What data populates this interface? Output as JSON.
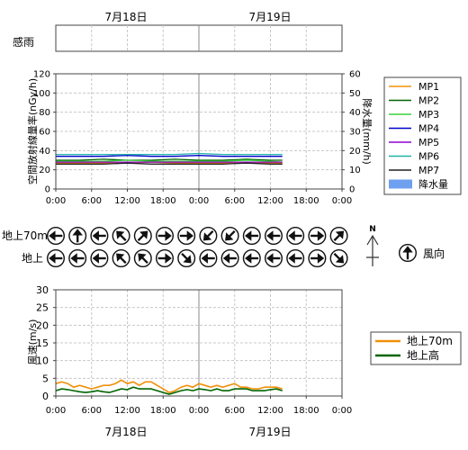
{
  "dates": [
    "7月18日",
    "7月19日"
  ],
  "rain_strip": {
    "label": "感雨"
  },
  "time_ticks": [
    "0:00",
    "6:00",
    "12:00",
    "18:00",
    "0:00",
    "6:00",
    "12:00",
    "18:00",
    "0:00"
  ],
  "dose_chart": {
    "type": "line",
    "ylabel": "空間放射線量率(nGy/h)",
    "y2label": "降水量(mm/h)",
    "ylim": [
      0,
      120
    ],
    "y2lim": [
      0,
      60
    ],
    "yticks": [
      "0",
      "20",
      "40",
      "60",
      "80",
      "100",
      "120"
    ],
    "y2ticks": [
      "0",
      "10",
      "20",
      "30",
      "40",
      "50",
      "60"
    ],
    "x_hours_range": [
      0,
      48
    ],
    "legend": [
      {
        "name": "MP1",
        "color": "#f0900a"
      },
      {
        "name": "MP2",
        "color": "#006400"
      },
      {
        "name": "MP3",
        "color": "#3cd23c"
      },
      {
        "name": "MP4",
        "color": "#0000c8"
      },
      {
        "name": "MP5",
        "color": "#9400d3"
      },
      {
        "name": "MP6",
        "color": "#20b2aa"
      },
      {
        "name": "MP7",
        "color": "#202020"
      }
    ],
    "rain_legend": {
      "name": "降水量",
      "color": "#6fa0f0"
    },
    "series_x_hours": [
      0,
      4,
      8,
      12,
      16,
      20,
      24,
      28,
      32,
      36,
      38
    ],
    "series": [
      {
        "name": "MP1",
        "color": "#f0900a",
        "values": [
          27,
          27,
          27,
          27,
          28,
          27,
          27,
          27,
          28,
          27,
          27
        ]
      },
      {
        "name": "MP2",
        "color": "#006400",
        "values": [
          30,
          30,
          31,
          30,
          30,
          31,
          30,
          30,
          31,
          30,
          30
        ]
      },
      {
        "name": "MP3",
        "color": "#3cd23c",
        "values": [
          29,
          29,
          29,
          30,
          29,
          29,
          29,
          29,
          30,
          29,
          28
        ]
      },
      {
        "name": "MP4",
        "color": "#0000c8",
        "values": [
          34,
          34,
          34,
          35,
          34,
          34,
          35,
          34,
          34,
          34,
          34
        ]
      },
      {
        "name": "MP5",
        "color": "#9400d3",
        "values": [
          28,
          28,
          28,
          28,
          28,
          28,
          28,
          28,
          28,
          28,
          28
        ]
      },
      {
        "name": "MP6",
        "color": "#20b2aa",
        "values": [
          36,
          36,
          36,
          36,
          36,
          36,
          37,
          36,
          36,
          36,
          36
        ]
      },
      {
        "name": "MP7",
        "color": "#202020",
        "values": [
          26,
          26,
          26,
          27,
          26,
          26,
          26,
          26,
          27,
          26,
          26
        ]
      }
    ]
  },
  "wind_dir": {
    "rows": [
      {
        "label": "地上70m",
        "angles": [
          270,
          0,
          270,
          315,
          45,
          90,
          90,
          225,
          225,
          270,
          270,
          270,
          90,
          45
        ]
      },
      {
        "label": "地上",
        "angles": [
          270,
          270,
          270,
          315,
          315,
          90,
          135,
          270,
          270,
          270,
          270,
          270,
          90,
          135
        ]
      }
    ],
    "north_label": "N",
    "legend_label": "風向",
    "legend_angle": 0
  },
  "wind_speed_chart": {
    "type": "line",
    "ylabel": "風速(m/s)",
    "ylim": [
      0,
      30
    ],
    "yticks": [
      "0",
      "5",
      "10",
      "15",
      "20",
      "25",
      "30"
    ],
    "legend": [
      {
        "name": "地上70m",
        "color": "#f0900a"
      },
      {
        "name": "地上高",
        "color": "#006400"
      }
    ],
    "series_x_hours": [
      0,
      1,
      2,
      3,
      4,
      5,
      6,
      7,
      8,
      9,
      10,
      11,
      12,
      13,
      14,
      15,
      16,
      17,
      18,
      19,
      20,
      21,
      22,
      23,
      24,
      25,
      26,
      27,
      28,
      29,
      30,
      31,
      32,
      33,
      34,
      35,
      36,
      37,
      38
    ],
    "series": [
      {
        "name": "地上70m",
        "color": "#f0900a",
        "values": [
          3.5,
          4,
          3.5,
          2.5,
          3,
          2.5,
          2,
          2.5,
          3,
          3,
          3.5,
          4.5,
          3.5,
          4,
          3,
          4,
          4,
          3,
          2,
          1,
          1.5,
          2.5,
          3,
          2.5,
          3.5,
          3,
          2.5,
          3,
          2.5,
          3,
          3.5,
          2.5,
          2.5,
          2,
          2,
          2.5,
          2.5,
          2.5,
          2
        ]
      },
      {
        "name": "地上高",
        "color": "#006400",
        "values": [
          1.5,
          2,
          1.8,
          1.5,
          1.2,
          1,
          1.2,
          1.5,
          1.2,
          1,
          1.5,
          2,
          1.8,
          2.5,
          2,
          2,
          2,
          1.5,
          1,
          0.5,
          1,
          1.5,
          1.8,
          1.5,
          2,
          1.8,
          1.5,
          2,
          1.5,
          1.5,
          2,
          2,
          2,
          1.5,
          1.5,
          1.5,
          1.8,
          2,
          1.5
        ]
      }
    ]
  }
}
